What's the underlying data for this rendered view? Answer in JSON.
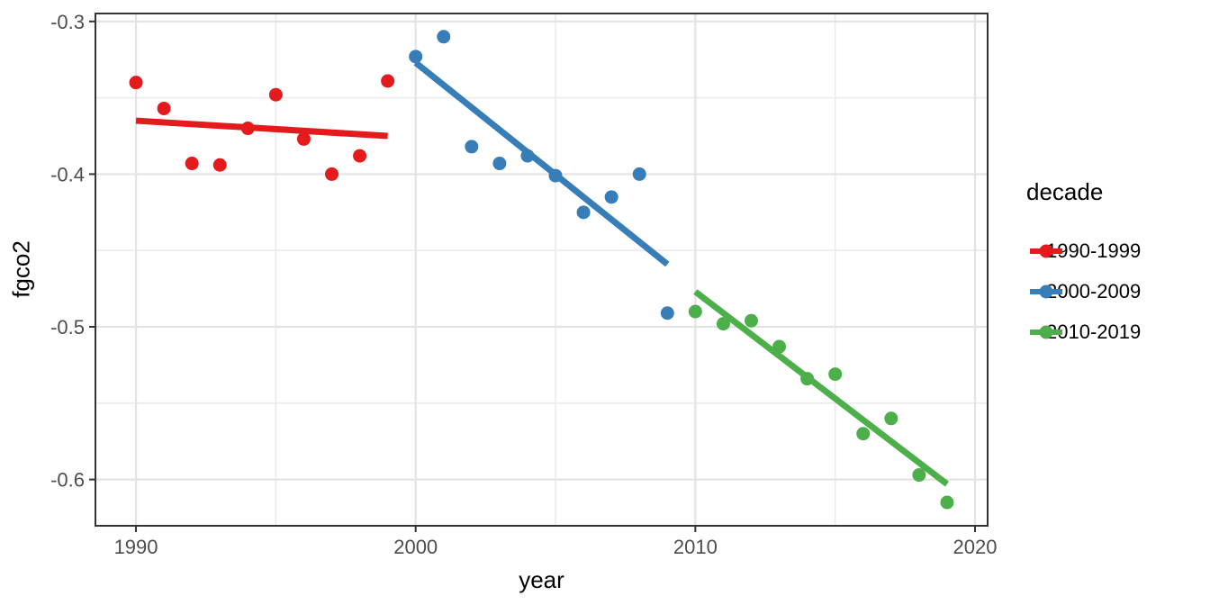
{
  "chart_data": {
    "type": "scatter",
    "title": "",
    "xlabel": "year",
    "ylabel": "fgco2",
    "xlim": [
      1988.55,
      2020.45
    ],
    "ylim_top": -0.2948,
    "ylim_bottom": -0.6303,
    "grid": true,
    "x_ticks": [
      {
        "v": 1990,
        "label": "1990"
      },
      {
        "v": 2000,
        "label": "2000"
      },
      {
        "v": 2010,
        "label": "2010"
      },
      {
        "v": 2020,
        "label": "2020"
      }
    ],
    "y_ticks": [
      {
        "v": -0.3,
        "label": "-0.3"
      },
      {
        "v": -0.4,
        "label": "-0.4"
      },
      {
        "v": -0.5,
        "label": "-0.5"
      },
      {
        "v": -0.6,
        "label": "-0.6"
      }
    ],
    "x_minor": [
      1995,
      2005,
      2015
    ],
    "y_minor": [
      -0.35,
      -0.45,
      -0.55
    ],
    "legend": {
      "title": "decade",
      "position": "right"
    },
    "series": [
      {
        "name": "1990-1999",
        "color": "#E41A1C",
        "points": [
          [
            1990,
            -0.34
          ],
          [
            1991,
            -0.357
          ],
          [
            1992,
            -0.393
          ],
          [
            1993,
            -0.394
          ],
          [
            1994,
            -0.37
          ],
          [
            1995,
            -0.348
          ],
          [
            1996,
            -0.377
          ],
          [
            1997,
            -0.4
          ],
          [
            1998,
            -0.388
          ],
          [
            1999,
            -0.339
          ]
        ],
        "trend": [
          [
            1990,
            -0.365
          ],
          [
            1999,
            -0.375
          ]
        ]
      },
      {
        "name": "2000-2009",
        "color": "#377EB8",
        "points": [
          [
            2000,
            -0.323
          ],
          [
            2001,
            -0.31
          ],
          [
            2002,
            -0.382
          ],
          [
            2003,
            -0.393
          ],
          [
            2004,
            -0.388
          ],
          [
            2005,
            -0.401
          ],
          [
            2006,
            -0.425
          ],
          [
            2007,
            -0.415
          ],
          [
            2008,
            -0.4
          ],
          [
            2009,
            -0.491
          ]
        ],
        "trend": [
          [
            2000,
            -0.327
          ],
          [
            2009,
            -0.459
          ]
        ]
      },
      {
        "name": "2010-2019",
        "color": "#4DAF4A",
        "points": [
          [
            2010,
            -0.49
          ],
          [
            2011,
            -0.498
          ],
          [
            2012,
            -0.496
          ],
          [
            2013,
            -0.513
          ],
          [
            2014,
            -0.534
          ],
          [
            2015,
            -0.531
          ],
          [
            2016,
            -0.57
          ],
          [
            2017,
            -0.56
          ],
          [
            2018,
            -0.597
          ],
          [
            2019,
            -0.615
          ]
        ],
        "trend": [
          [
            2010,
            -0.477
          ],
          [
            2019,
            -0.603
          ]
        ]
      }
    ],
    "style": {
      "panel_border": "#333333",
      "grid_major": "#E3E3E3",
      "grid_minor": "#EBEBEB",
      "tick_color": "#333333",
      "tick_label_color": "#4D4D4D",
      "background": "#FFFFFF"
    }
  }
}
